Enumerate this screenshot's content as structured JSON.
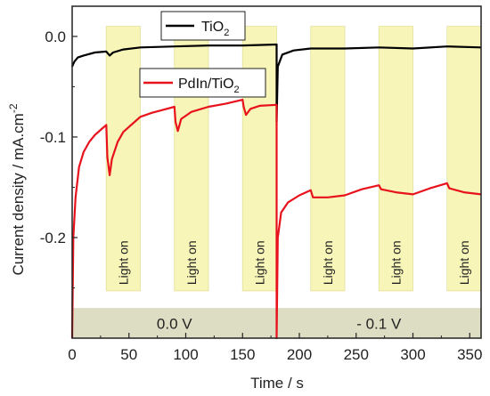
{
  "chart_data": {
    "type": "line",
    "xlabel": "Time / s",
    "ylabel": "Current density / mA.cm",
    "ylabel_superscript": "-2",
    "xlim": [
      0,
      360
    ],
    "ylim": [
      -0.3,
      0.03
    ],
    "xticks": [
      0,
      50,
      100,
      150,
      200,
      250,
      300,
      350
    ],
    "yticks": [
      0.0,
      -0.1,
      -0.2
    ],
    "ytick_labels": [
      "0.0",
      "-0.1",
      "-0.2"
    ],
    "light_on_label": "Light on",
    "light_on_intervals": [
      [
        30,
        60
      ],
      [
        90,
        120
      ],
      [
        150,
        180
      ],
      [
        210,
        240
      ],
      [
        270,
        300
      ],
      [
        330,
        360
      ]
    ],
    "bias_band": {
      "ymin": -0.3,
      "ymax": -0.27,
      "color": "#ddddc4"
    },
    "bias_labels": [
      {
        "text": "0.0 V",
        "x": 90
      },
      {
        "text": "- 0.1 V",
        "x": 270
      }
    ],
    "series": [
      {
        "name": "TiO",
        "name_subscript": "2",
        "color": "#000000",
        "points": [
          [
            0,
            -0.03
          ],
          [
            2,
            -0.025
          ],
          [
            5,
            -0.021
          ],
          [
            10,
            -0.019
          ],
          [
            20,
            -0.016
          ],
          [
            30,
            -0.015
          ],
          [
            33,
            -0.019
          ],
          [
            36,
            -0.016
          ],
          [
            45,
            -0.013
          ],
          [
            60,
            -0.011
          ],
          [
            90,
            -0.01
          ],
          [
            120,
            -0.009
          ],
          [
            150,
            -0.009
          ],
          [
            180,
            -0.008
          ],
          [
            180,
            -0.085
          ],
          [
            181,
            -0.03
          ],
          [
            185,
            -0.018
          ],
          [
            195,
            -0.014
          ],
          [
            210,
            -0.012
          ],
          [
            240,
            -0.012
          ],
          [
            270,
            -0.011
          ],
          [
            300,
            -0.012
          ],
          [
            330,
            -0.01
          ],
          [
            360,
            -0.011
          ]
        ]
      },
      {
        "name": "PdIn/TiO",
        "name_subscript": "2",
        "color": "#e8121c",
        "points": [
          [
            0,
            -0.3
          ],
          [
            1,
            -0.2
          ],
          [
            3,
            -0.16
          ],
          [
            6,
            -0.13
          ],
          [
            10,
            -0.115
          ],
          [
            15,
            -0.105
          ],
          [
            20,
            -0.098
          ],
          [
            25,
            -0.093
          ],
          [
            30,
            -0.088
          ],
          [
            31,
            -0.12
          ],
          [
            33,
            -0.138
          ],
          [
            35,
            -0.122
          ],
          [
            40,
            -0.105
          ],
          [
            45,
            -0.095
          ],
          [
            50,
            -0.09
          ],
          [
            55,
            -0.085
          ],
          [
            60,
            -0.08
          ],
          [
            70,
            -0.076
          ],
          [
            80,
            -0.073
          ],
          [
            90,
            -0.07
          ],
          [
            91,
            -0.085
          ],
          [
            93,
            -0.094
          ],
          [
            96,
            -0.082
          ],
          [
            105,
            -0.075
          ],
          [
            120,
            -0.07
          ],
          [
            135,
            -0.067
          ],
          [
            150,
            -0.063
          ],
          [
            151,
            -0.07
          ],
          [
            153,
            -0.078
          ],
          [
            157,
            -0.072
          ],
          [
            165,
            -0.069
          ],
          [
            180,
            -0.068
          ],
          [
            180,
            -0.3
          ],
          [
            181,
            -0.2
          ],
          [
            184,
            -0.175
          ],
          [
            190,
            -0.165
          ],
          [
            200,
            -0.158
          ],
          [
            210,
            -0.153
          ],
          [
            212,
            -0.16
          ],
          [
            225,
            -0.16
          ],
          [
            240,
            -0.158
          ],
          [
            255,
            -0.152
          ],
          [
            270,
            -0.148
          ],
          [
            272,
            -0.152
          ],
          [
            285,
            -0.155
          ],
          [
            300,
            -0.157
          ],
          [
            315,
            -0.151
          ],
          [
            330,
            -0.146
          ],
          [
            332,
            -0.151
          ],
          [
            345,
            -0.155
          ],
          [
            360,
            -0.157
          ]
        ]
      }
    ],
    "legend_placement": "top"
  }
}
